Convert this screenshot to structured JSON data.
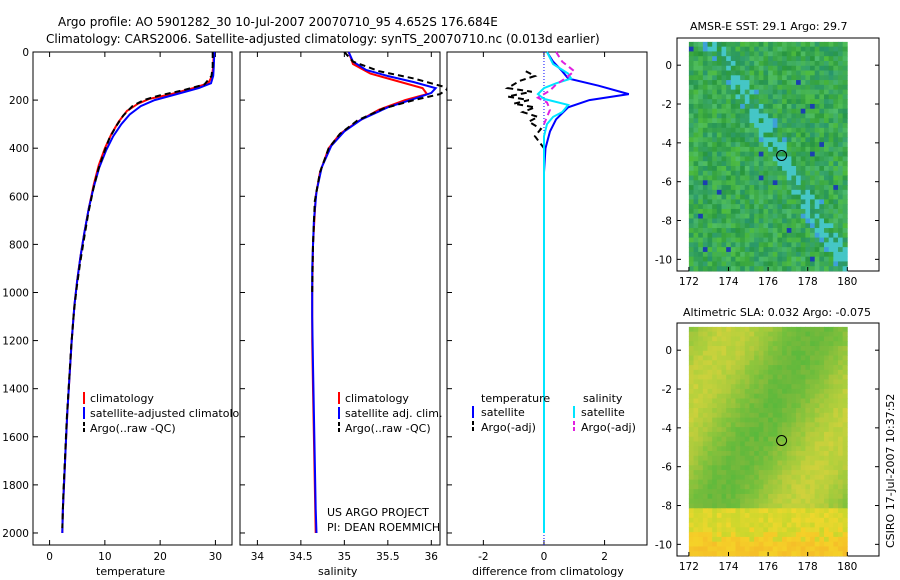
{
  "header": {
    "line1": "Argo profile: AO 5901282_30 10-Jul-2007 20070710_95 4.652S 176.684E",
    "line2": "Climatology: CARS2006. Satellite-adjusted climatology: synTS_20070710.nc (0.013d earlier)"
  },
  "side_label": "CSIRO 17-Jul-2007 10:37:52",
  "colors": {
    "climatology": "#ff0000",
    "satellite": "#0000ff",
    "argo": "#000000",
    "sal_satellite": "#00e5ff",
    "sal_argo": "#e020e0"
  },
  "chart_data": [
    {
      "type": "line",
      "id": "temperature",
      "xlabel": "temperature",
      "xlim": [
        -3,
        33
      ],
      "xticks": [
        0,
        10,
        20,
        30
      ],
      "ylim": [
        2050,
        0
      ],
      "yticks": [
        0,
        200,
        400,
        600,
        800,
        1000,
        1200,
        1400,
        1600,
        1800,
        2000
      ],
      "legend": [
        "climatology",
        "satellite-adjusted climatology",
        "Argo(..raw -QC)"
      ],
      "series": [
        {
          "name": "climatology",
          "color": "red",
          "points": [
            [
              29.7,
              0
            ],
            [
              29.6,
              60
            ],
            [
              29.4,
              100
            ],
            [
              28.7,
              130
            ],
            [
              26,
              150
            ],
            [
              22,
              175
            ],
            [
              18,
              195
            ],
            [
              16,
              215
            ],
            [
              14,
              245
            ],
            [
              12.5,
              290
            ],
            [
              11.2,
              340
            ],
            [
              10,
              400
            ],
            [
              8.9,
              470
            ],
            [
              8,
              550
            ],
            [
              7.1,
              650
            ],
            [
              6.3,
              750
            ],
            [
              5.6,
              850
            ],
            [
              5,
              950
            ],
            [
              4.5,
              1050
            ],
            [
              4,
              1200
            ],
            [
              3.6,
              1350
            ],
            [
              3.2,
              1500
            ],
            [
              2.9,
              1650
            ],
            [
              2.6,
              1800
            ],
            [
              2.4,
              1900
            ],
            [
              2.3,
              2000
            ]
          ]
        },
        {
          "name": "satellite-adjusted climatology",
          "color": "blue",
          "points": [
            [
              29.8,
              0
            ],
            [
              29.7,
              60
            ],
            [
              29.6,
              100
            ],
            [
              29.2,
              130
            ],
            [
              27,
              150
            ],
            [
              23,
              175
            ],
            [
              19,
              200
            ],
            [
              16.5,
              225
            ],
            [
              14.5,
              260
            ],
            [
              13,
              300
            ],
            [
              11.5,
              350
            ],
            [
              10.2,
              410
            ],
            [
              9,
              480
            ],
            [
              8,
              560
            ],
            [
              7.1,
              650
            ],
            [
              6.3,
              750
            ],
            [
              5.6,
              850
            ],
            [
              5,
              950
            ],
            [
              4.5,
              1050
            ],
            [
              4,
              1200
            ],
            [
              3.6,
              1350
            ],
            [
              3.2,
              1500
            ],
            [
              2.9,
              1650
            ],
            [
              2.6,
              1800
            ],
            [
              2.4,
              1900
            ],
            [
              2.3,
              2000
            ]
          ]
        },
        {
          "name": "Argo(..raw -QC)",
          "color": "black",
          "dashed": true,
          "points": [
            [
              29.5,
              0
            ],
            [
              29.5,
              60
            ],
            [
              29.3,
              100
            ],
            [
              28,
              135
            ],
            [
              24,
              160
            ],
            [
              20,
              180
            ],
            [
              17,
              200
            ],
            [
              15,
              225
            ],
            [
              13.3,
              265
            ],
            [
              12,
              310
            ],
            [
              10.8,
              360
            ],
            [
              9.8,
              420
            ],
            [
              8.8,
              490
            ],
            [
              7.9,
              570
            ],
            [
              7,
              670
            ],
            [
              6.2,
              780
            ],
            [
              5.5,
              880
            ],
            [
              4.9,
              980
            ],
            [
              4.4,
              1080
            ],
            [
              3.9,
              1230
            ],
            [
              3.5,
              1380
            ],
            [
              3.1,
              1530
            ],
            [
              2.8,
              1680
            ],
            [
              2.5,
              1830
            ],
            [
              2.3,
              1980
            ]
          ]
        }
      ]
    },
    {
      "type": "line",
      "id": "salinity",
      "xlabel": "salinity",
      "xlim": [
        33.8,
        36.1
      ],
      "xticks": [
        34,
        34.5,
        35,
        35.5,
        36
      ],
      "xticklabels": [
        "34",
        "34.5",
        "35",
        "35.5",
        "36"
      ],
      "ylim": [
        2050,
        0
      ],
      "legend": [
        "climatology",
        "satellite adj. clim.",
        "Argo(..raw -QC)"
      ],
      "annotations": [
        "US ARGO PROJECT",
        "PI: DEAN ROEMMICH"
      ],
      "series": [
        {
          "name": "climatology",
          "color": "red",
          "points": [
            [
              35.05,
              0
            ],
            [
              35.1,
              50
            ],
            [
              35.3,
              90
            ],
            [
              35.6,
              120
            ],
            [
              35.9,
              150
            ],
            [
              35.95,
              175
            ],
            [
              35.7,
              200
            ],
            [
              35.4,
              240
            ],
            [
              35.15,
              290
            ],
            [
              34.95,
              340
            ],
            [
              34.82,
              400
            ],
            [
              34.72,
              500
            ],
            [
              34.67,
              600
            ],
            [
              34.64,
              800
            ],
            [
              34.63,
              1000
            ],
            [
              34.63,
              1200
            ],
            [
              34.64,
              1400
            ],
            [
              34.65,
              1600
            ],
            [
              34.66,
              1800
            ],
            [
              34.67,
              2000
            ]
          ]
        },
        {
          "name": "satellite adj. clim.",
          "color": "blue",
          "points": [
            [
              35.05,
              0
            ],
            [
              35.1,
              40
            ],
            [
              35.25,
              75
            ],
            [
              35.5,
              100
            ],
            [
              35.8,
              125
            ],
            [
              36.05,
              150
            ],
            [
              36.0,
              170
            ],
            [
              35.8,
              195
            ],
            [
              35.5,
              230
            ],
            [
              35.2,
              280
            ],
            [
              35.0,
              330
            ],
            [
              34.85,
              390
            ],
            [
              34.74,
              480
            ],
            [
              34.68,
              580
            ],
            [
              34.65,
              700
            ],
            [
              34.63,
              900
            ],
            [
              34.63,
              1100
            ],
            [
              34.64,
              1300
            ],
            [
              34.65,
              1500
            ],
            [
              34.66,
              1700
            ],
            [
              34.67,
              1900
            ],
            [
              34.68,
              2000
            ]
          ]
        },
        {
          "name": "Argo(..raw -QC)",
          "color": "black",
          "dashed": true,
          "points": [
            [
              35.0,
              0
            ],
            [
              35.1,
              40
            ],
            [
              35.4,
              80
            ],
            [
              35.8,
              110
            ],
            [
              36.0,
              130
            ],
            [
              36.2,
              150
            ],
            [
              36.1,
              175
            ],
            [
              35.8,
              200
            ],
            [
              35.45,
              235
            ],
            [
              35.15,
              285
            ],
            [
              34.95,
              340
            ],
            [
              34.82,
              400
            ],
            [
              34.72,
              500
            ],
            [
              34.66,
              620
            ],
            [
              34.64,
              800
            ],
            [
              34.63,
              1000
            ]
          ]
        }
      ]
    },
    {
      "type": "line",
      "id": "difference",
      "xlabel": "difference from climatology",
      "xlim": [
        -3.2,
        3.4
      ],
      "xticks": [
        -2,
        0,
        2
      ],
      "ylim": [
        2050,
        0
      ],
      "legend_headers": [
        "temperature",
        "salinity"
      ],
      "legend": [
        "satellite",
        "Argo(-adj)",
        "satellite",
        "Argo(-adj)"
      ],
      "series": [
        {
          "name": "temperature satellite",
          "color": "blue",
          "points": [
            [
              0.1,
              0
            ],
            [
              0.3,
              40
            ],
            [
              0.6,
              80
            ],
            [
              0.8,
              110
            ],
            [
              1.8,
              140
            ],
            [
              2.8,
              175
            ],
            [
              1.5,
              200
            ],
            [
              0.8,
              230
            ],
            [
              0.4,
              280
            ],
            [
              0.2,
              330
            ],
            [
              0.05,
              400
            ],
            [
              0,
              500
            ],
            [
              0,
              800
            ],
            [
              0,
              1200
            ],
            [
              0,
              1600
            ],
            [
              0,
              2000
            ]
          ]
        },
        {
          "name": "temperature Argo(-adj)",
          "color": "black",
          "dashed": true,
          "points": [
            [
              -0.6,
              80
            ],
            [
              -0.3,
              100
            ],
            [
              -0.8,
              120
            ],
            [
              -1.2,
              150
            ],
            [
              -0.4,
              165
            ],
            [
              -1.2,
              185
            ],
            [
              -0.5,
              200
            ],
            [
              -1.0,
              215
            ],
            [
              -0.3,
              230
            ],
            [
              -0.7,
              250
            ],
            [
              -0.2,
              270
            ],
            [
              -0.5,
              290
            ],
            [
              -0.1,
              320
            ],
            [
              -0.3,
              350
            ],
            [
              0,
              400
            ]
          ]
        },
        {
          "name": "salinity satellite",
          "color": "cyan",
          "points": [
            [
              0.1,
              0
            ],
            [
              0.3,
              50
            ],
            [
              0.8,
              90
            ],
            [
              0.9,
              110
            ],
            [
              0.4,
              130
            ],
            [
              0,
              150
            ],
            [
              -0.2,
              175
            ],
            [
              0,
              195
            ],
            [
              0.8,
              220
            ],
            [
              0.6,
              250
            ],
            [
              0.3,
              270
            ],
            [
              0.1,
              300
            ],
            [
              0,
              350
            ],
            [
              0,
              500
            ],
            [
              0,
              1000
            ],
            [
              0,
              1500
            ],
            [
              0,
              2000
            ]
          ]
        },
        {
          "name": "salinity Argo(-adj)",
          "color": "magenta",
          "dashed": true,
          "points": [
            [
              0.4,
              0
            ],
            [
              0.6,
              40
            ],
            [
              1.0,
              80
            ],
            [
              0.7,
              110
            ],
            [
              0.4,
              135
            ],
            [
              0.2,
              160
            ],
            [
              -0.2,
              190
            ],
            [
              0.1,
              210
            ],
            [
              0.2,
              240
            ],
            [
              0.1,
              270
            ],
            [
              0,
              300
            ]
          ]
        }
      ]
    },
    {
      "type": "heatmap",
      "id": "sst",
      "title": "AMSR-E SST: 29.1 Argo: 29.7",
      "xlim": [
        171.4,
        181.6
      ],
      "xticks": [
        172,
        174,
        176,
        178,
        180
      ],
      "ylim": [
        -10.6,
        1.4
      ],
      "yticks": [
        0,
        -2,
        -4,
        -6,
        -8,
        -10
      ],
      "marker": [
        176.684,
        -4.652
      ]
    },
    {
      "type": "heatmap",
      "id": "sla",
      "title": "Altimetric SLA: 0.032 Argo: -0.075",
      "xlim": [
        171.4,
        181.6
      ],
      "xticks": [
        172,
        174,
        176,
        178,
        180
      ],
      "ylim": [
        -10.6,
        1.4
      ],
      "yticks": [
        0,
        -2,
        -4,
        -6,
        -8,
        -10
      ],
      "marker": [
        176.684,
        -4.652
      ]
    }
  ]
}
